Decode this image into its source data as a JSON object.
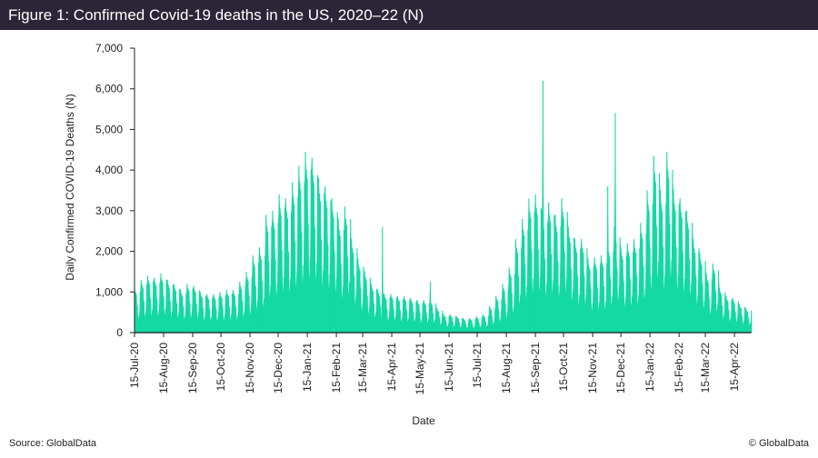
{
  "title": "Figure 1: Confirmed Covid-19 deaths in the US, 2020–22 (N)",
  "footer": {
    "source": "Source: GlobalData",
    "copyright": "© GlobalData"
  },
  "colors": {
    "title_bar": "#2b2538",
    "area": "#14d9a2"
  },
  "chart_data": {
    "type": "area",
    "title": "Figure 1: Confirmed Covid-19 deaths in the US, 2020–22 (N)",
    "xlabel": "Date",
    "ylabel": "Daily Confirmed COVID-19 Deaths (N)",
    "ylim": [
      0,
      7000
    ],
    "yticks": [
      "0",
      "1,000",
      "2,000",
      "3,000",
      "4,000",
      "5,000",
      "6,000",
      "7,000"
    ],
    "xticks": [
      "15-Jul-20",
      "15-Aug-20",
      "15-Sep-20",
      "15-Oct-20",
      "15-Nov-20",
      "15-Dec-20",
      "15-Jan-21",
      "15-Feb-21",
      "15-Mar-21",
      "15-Apr-21",
      "15-May-21",
      "15-Jun-21",
      "15-Jul-21",
      "15-Aug-21",
      "15-Sep-21",
      "15-Oct-21",
      "15-Nov-21",
      "15-Dec-21",
      "15-Jan-22",
      "15-Feb-22",
      "15-Mar-22",
      "15-Apr-22"
    ],
    "x_start": "2020-07-15",
    "x_step": "1 day",
    "grid": false,
    "legend": "none",
    "values": [
      1100,
      990,
      940,
      660,
      330,
      440,
      990,
      1300,
      1170,
      1100,
      780,
      390,
      520,
      1170,
      1400,
      1260,
      1190,
      840,
      420,
      560,
      1260,
      1350,
      1220,
      1150,
      810,
      400,
      540,
      1220,
      1450,
      1300,
      1230,
      870,
      440,
      580,
      1300,
      1300,
      1170,
      1100,
      780,
      390,
      520,
      1170,
      1200,
      1080,
      1020,
      720,
      360,
      480,
      1080,
      1050,
      950,
      890,
      630,
      320,
      420,
      950,
      1200,
      1080,
      1020,
      720,
      360,
      480,
      1080,
      1150,
      1040,
      980,
      690,
      350,
      460,
      1040,
      1000,
      900,
      850,
      600,
      300,
      400,
      900,
      950,
      860,
      810,
      570,
      290,
      380,
      860,
      950,
      860,
      810,
      570,
      290,
      380,
      860,
      1000,
      900,
      850,
      600,
      300,
      400,
      900,
      1050,
      950,
      890,
      630,
      320,
      420,
      950,
      1050,
      950,
      890,
      630,
      320,
      420,
      950,
      1250,
      1130,
      1060,
      750,
      380,
      500,
      1130,
      1500,
      1350,
      1280,
      900,
      450,
      600,
      1350,
      1900,
      1710,
      1620,
      1140,
      570,
      760,
      1710,
      2100,
      1890,
      1790,
      1260,
      630,
      840,
      1890,
      2900,
      2610,
      2470,
      1740,
      870,
      1160,
      2610,
      3000,
      2700,
      2550,
      1800,
      900,
      1200,
      2700,
      3400,
      3060,
      2890,
      2040,
      1020,
      1360,
      3060,
      3300,
      2970,
      2810,
      1980,
      990,
      1320,
      2970,
      3700,
      3330,
      3150,
      2220,
      1110,
      1480,
      3330,
      4100,
      3690,
      3490,
      2460,
      1230,
      1640,
      3690,
      4450,
      4000,
      3780,
      2670,
      1340,
      1780,
      4000,
      4300,
      3870,
      3660,
      2580,
      1290,
      1720,
      3870,
      3800,
      3420,
      3230,
      2280,
      1140,
      1520,
      3420,
      3600,
      3240,
      3060,
      2160,
      1080,
      1440,
      3240,
      3300,
      2970,
      2810,
      1980,
      990,
      1320,
      2970,
      2800,
      2520,
      2380,
      1680,
      840,
      1120,
      2520,
      3100,
      2790,
      2640,
      1860,
      930,
      1240,
      2790,
      2300,
      2070,
      1960,
      1380,
      690,
      920,
      2070,
      1800,
      1620,
      1530,
      1080,
      540,
      720,
      1620,
      1500,
      1350,
      1280,
      900,
      450,
      600,
      1350,
      1200,
      1080,
      1020,
      720,
      360,
      480,
      1080,
      1050,
      950,
      890,
      630,
      320,
      2600,
      950,
      950,
      860,
      810,
      570,
      290,
      380,
      860,
      950,
      860,
      810,
      570,
      290,
      380,
      860,
      900,
      810,
      770,
      540,
      270,
      360,
      810,
      900,
      810,
      770,
      540,
      270,
      360,
      810,
      850,
      770,
      720,
      510,
      260,
      340,
      770,
      800,
      720,
      680,
      480,
      240,
      320,
      720,
      800,
      720,
      680,
      480,
      240,
      320,
      720,
      1250,
      720,
      680,
      480,
      240,
      320,
      720,
      600,
      540,
      510,
      360,
      180,
      240,
      540,
      450,
      400,
      380,
      270,
      140,
      180,
      400,
      450,
      400,
      380,
      270,
      140,
      180,
      400,
      400,
      360,
      340,
      240,
      120,
      160,
      360,
      350,
      320,
      300,
      210,
      110,
      140,
      320,
      350,
      320,
      300,
      210,
      110,
      140,
      320,
      400,
      360,
      340,
      240,
      120,
      160,
      360,
      450,
      400,
      380,
      270,
      140,
      180,
      400,
      650,
      590,
      550,
      390,
      200,
      260,
      590,
      900,
      810,
      770,
      540,
      270,
      360,
      810,
      1200,
      1080,
      1020,
      720,
      360,
      480,
      1080,
      1600,
      1440,
      1360,
      960,
      480,
      640,
      1440,
      2300,
      2070,
      1960,
      1380,
      690,
      920,
      2070,
      2800,
      2520,
      2380,
      1680,
      840,
      1120,
      2520,
      3300,
      2970,
      2810,
      1980,
      990,
      1320,
      2970,
      3400,
      3060,
      2890,
      2040,
      1020,
      1360,
      3060,
      3000,
      6200,
      2550,
      1800,
      900,
      1200,
      2700,
      3200,
      2880,
      2720,
      1920,
      960,
      1280,
      2880,
      2900,
      2610,
      2470,
      1740,
      870,
      1160,
      2610,
      3300,
      2970,
      2810,
      1980,
      990,
      1320,
      2970,
      2600,
      2340,
      2210,
      1560,
      780,
      1040,
      2340,
      2300,
      2070,
      1960,
      1380,
      690,
      920,
      2070,
      2300,
      2070,
      1960,
      1380,
      690,
      920,
      2070,
      1800,
      1620,
      1530,
      1080,
      540,
      720,
      1620,
      1850,
      1670,
      1570,
      1110,
      560,
      740,
      1670,
      1900,
      1710,
      1620,
      1140,
      570,
      760,
      1710,
      3600,
      1980,
      1870,
      1320,
      660,
      880,
      1980,
      2600,
      5400,
      2210,
      1560,
      780,
      1040,
      2340,
      2100,
      1890,
      1790,
      1260,
      630,
      840,
      1890,
      2200,
      1980,
      1870,
      1320,
      660,
      880,
      1980,
      2300,
      2070,
      1960,
      1380,
      690,
      920,
      2070,
      2700,
      2430,
      2300,
      1620,
      810,
      1080,
      2430,
      3500,
      3150,
      2980,
      2100,
      1050,
      1400,
      3150,
      4350,
      3920,
      3700,
      2610,
      1310,
      1740,
      3920,
      3500,
      3150,
      2980,
      2100,
      1050,
      1400,
      3150,
      4450,
      4000,
      3780,
      2670,
      1340,
      1780,
      4000,
      3500,
      3150,
      2980,
      2100,
      1050,
      1400,
      3150,
      3300,
      2970,
      2810,
      1980,
      990,
      1320,
      2970,
      3000,
      2700,
      2550,
      1800,
      900,
      1200,
      2700,
      2300,
      2070,
      1960,
      1380,
      690,
      920,
      2070,
      1950,
      1760,
      1660,
      1170,
      590,
      780,
      1760,
      1450,
      1300,
      1230,
      870,
      440,
      580,
      1300,
      1700,
      1530,
      1450,
      1020,
      510,
      680,
      1530,
      1100,
      990,
      940,
      660,
      330,
      440,
      990,
      900,
      810,
      770,
      540,
      270,
      360,
      810,
      850,
      770,
      720,
      510,
      260,
      340,
      770,
      700,
      630,
      600,
      420,
      210,
      280,
      630,
      600,
      540,
      510,
      360,
      180,
      240,
      540
    ]
  }
}
